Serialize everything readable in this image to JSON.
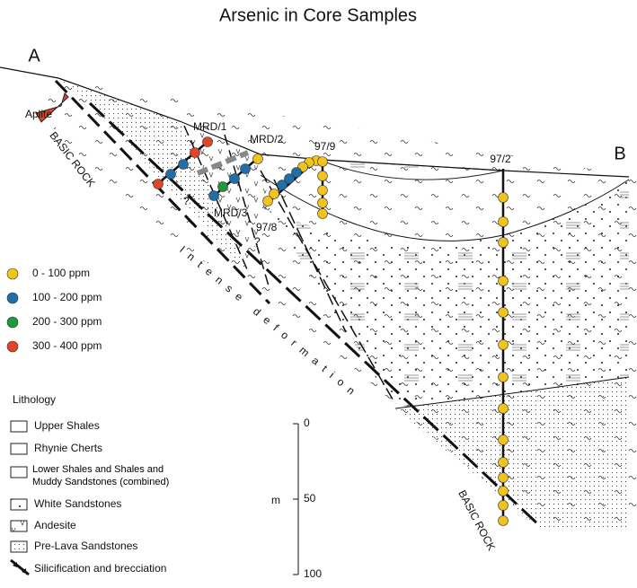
{
  "title": "Arsenic in Core Samples",
  "section": {
    "end_labels": [
      "A",
      "B"
    ],
    "aplite": "Aplite",
    "basic_rock": [
      "BASIC ROCK",
      "BASIC ROCK"
    ],
    "deformation": "Intense deformation",
    "queries": [
      "?",
      "?"
    ]
  },
  "boreholes": [
    {
      "name": "MRD/1"
    },
    {
      "name": "MRD/2"
    },
    {
      "name": "MRD/3"
    },
    {
      "name": "97/8"
    },
    {
      "name": "97/9"
    },
    {
      "name": "97/2"
    }
  ],
  "legend": {
    "arsenic": [
      {
        "label": "0 - 100 ppm",
        "color": "#f2c31c"
      },
      {
        "label": "100 - 200 ppm",
        "color": "#1f6fa8"
      },
      {
        "label": "200 - 300 ppm",
        "color": "#1e9a3c"
      },
      {
        "label": "300 - 400 ppm",
        "color": "#e0452a"
      }
    ],
    "lithology": {
      "title": "Lithology",
      "items": [
        "Upper Shales",
        "Rhynie Cherts",
        "Lower Shales and Shales and Muddy Sandstones (combined)",
        "White Sandstones",
        "Andesite",
        "Pre-Lava Sandstones",
        "Silicification and brecciation"
      ]
    }
  },
  "scale": {
    "unit": "m",
    "lim": [
      0,
      100
    ],
    "ticks": [
      0,
      50,
      100
    ]
  }
}
